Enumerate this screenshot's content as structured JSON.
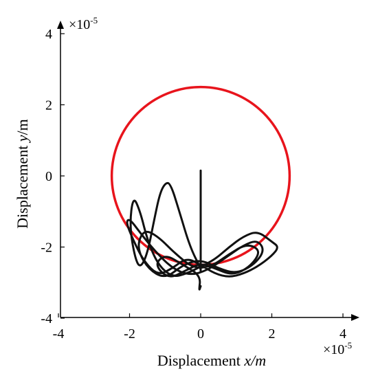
{
  "chart_data": {
    "type": "line",
    "xlabel": {
      "prefix": "Displacement ",
      "var": "x",
      "unit": "/m"
    },
    "ylabel": {
      "prefix": "Displacement ",
      "var": "y",
      "unit": "/m"
    },
    "xlim": [
      -4,
      4.4
    ],
    "ylim": [
      -4,
      4.4
    ],
    "x_ticks": [
      "-4",
      "-2",
      "0",
      "2",
      "4"
    ],
    "y_ticks": [
      "-4",
      "-2",
      "0",
      "2",
      "4"
    ],
    "x_exponent": {
      "base": "×10",
      "power": "-5"
    },
    "y_exponent": {
      "base": "×10",
      "power": "-5"
    },
    "grid": false,
    "colors": {
      "trajectory": "#111111",
      "boundary": "#e8141c",
      "axes": "#000000"
    },
    "series": [
      {
        "style": "circle",
        "center": [
          0,
          0
        ],
        "radius": 2.5
      },
      {
        "style": "path",
        "x": [
          0,
          0,
          0.0,
          -0.3,
          -0.6,
          -0.85,
          -1.0,
          -1.15,
          -1.3,
          -1.5,
          -1.7,
          -1.85,
          -2.0,
          -1.9,
          -1.7,
          -1.5,
          -1.2,
          -0.8,
          -0.4,
          0,
          0.4,
          0.8,
          1.2,
          1.6,
          2.0,
          2.2,
          2.0,
          1.6,
          1.2,
          0.8,
          0.4,
          0,
          -0.4,
          -0.8,
          -1.2,
          -1.6,
          -1.9,
          -2.1,
          -2.0,
          -1.7,
          -1.3,
          -0.8,
          -0.3,
          0.2,
          0.7,
          1.2,
          1.6,
          1.8,
          1.5,
          1.0,
          0.5,
          0,
          -0.5,
          -1.0,
          -1.5,
          -1.8,
          -1.6,
          -1.2,
          -0.7,
          -0.2,
          0.3,
          0.8,
          1.3,
          1.7,
          1.4,
          0.9,
          0.4,
          0,
          -0.4,
          -0.9,
          -1.3,
          -1.0,
          -0.5,
          0,
          -0.05,
          0
        ],
        "y": [
          0.15,
          -2.7,
          -2.6,
          -2.0,
          -1.0,
          -0.2,
          -0.2,
          -0.5,
          -1.2,
          -2.2,
          -2.6,
          -2.3,
          -1.4,
          -0.55,
          -1.0,
          -1.8,
          -2.5,
          -2.85,
          -2.75,
          -2.55,
          -2.35,
          -2.0,
          -1.7,
          -1.55,
          -1.85,
          -2.0,
          -2.25,
          -2.55,
          -2.75,
          -2.85,
          -2.75,
          -2.5,
          -2.3,
          -2.6,
          -2.8,
          -2.4,
          -1.8,
          -1.3,
          -1.2,
          -1.6,
          -2.1,
          -2.6,
          -2.8,
          -2.65,
          -2.3,
          -1.95,
          -1.8,
          -2.1,
          -2.5,
          -2.75,
          -2.6,
          -2.35,
          -2.5,
          -2.9,
          -2.6,
          -2.0,
          -1.5,
          -1.7,
          -2.2,
          -2.6,
          -2.55,
          -2.2,
          -1.9,
          -2.1,
          -2.55,
          -2.8,
          -2.6,
          -2.45,
          -2.65,
          -2.9,
          -2.5,
          -2.2,
          -2.5,
          -2.8,
          -3.25,
          -3.1
        ]
      }
    ]
  }
}
